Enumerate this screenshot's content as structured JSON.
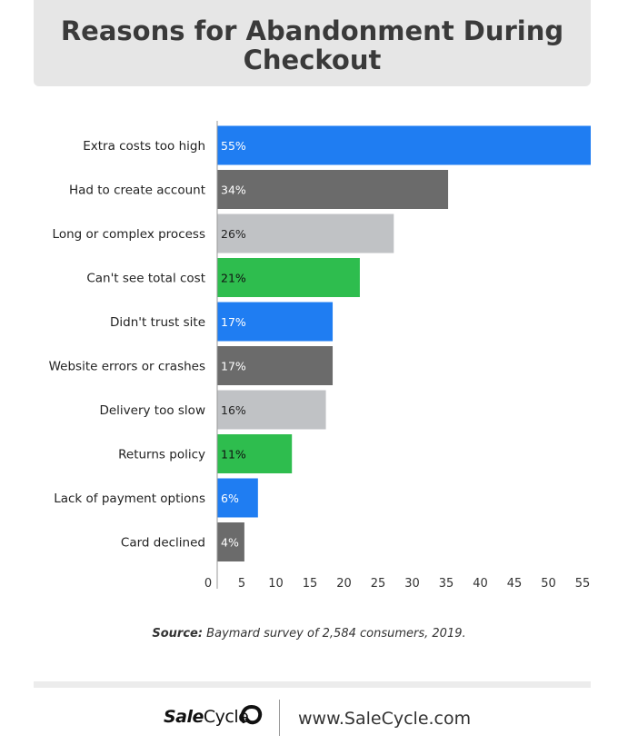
{
  "chart_data": {
    "type": "bar",
    "orientation": "horizontal",
    "title": "Reasons for Abandonment During Checkout",
    "categories": [
      "Extra costs too high",
      "Had to create account",
      "Long or complex process",
      "Can't see total cost",
      "Didn't trust site",
      "Website errors or crashes",
      "Delivery too slow",
      "Returns policy",
      "Lack of payment options",
      "Card declined"
    ],
    "values": [
      55,
      34,
      26,
      21,
      17,
      17,
      16,
      11,
      6,
      4
    ],
    "data_labels": [
      "55%",
      "34%",
      "26%",
      "21%",
      "17%",
      "17%",
      "16%",
      "11%",
      "6%",
      "4%"
    ],
    "bar_colors": [
      "#1f7df2",
      "#6b6b6b",
      "#c0c2c5",
      "#2ebd4e",
      "#1f7df2",
      "#6b6b6b",
      "#c0c2c5",
      "#2ebd4e",
      "#1f7df2",
      "#6b6b6b"
    ],
    "label_colors": [
      "#ffffff",
      "#ffffff",
      "#222222",
      "#111111",
      "#ffffff",
      "#ffffff",
      "#222222",
      "#111111",
      "#ffffff",
      "#ffffff"
    ],
    "x_ticks": [
      "0",
      "5",
      "10",
      "15",
      "20",
      "25",
      "30",
      "35",
      "40",
      "45",
      "50",
      "55"
    ],
    "xlim": [
      0,
      55
    ],
    "xlabel": "",
    "ylabel": ""
  },
  "source": {
    "label": "Source:",
    "text": " Baymard survey of 2,584 consumers, 2019."
  },
  "footer": {
    "brand_bold": "Sale",
    "brand_regular": "Cycle",
    "website": "www.SaleCycle.com"
  }
}
